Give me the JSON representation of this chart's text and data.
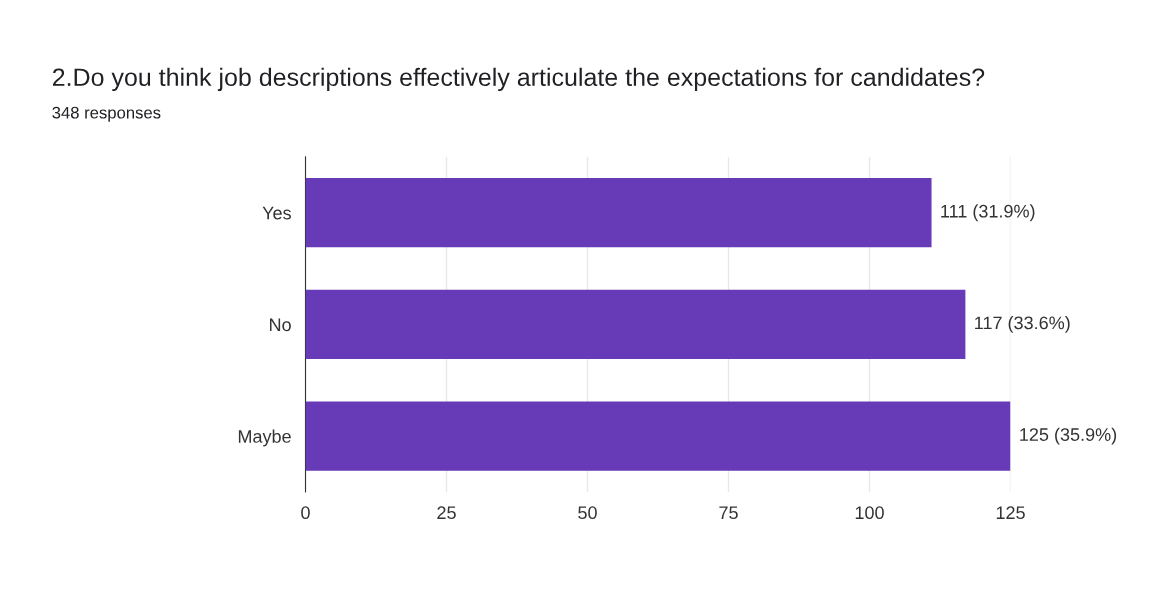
{
  "chart_data": {
    "type": "bar",
    "orientation": "horizontal",
    "title": "2.Do you think job descriptions effectively articulate the expectations for candidates?",
    "subtitle": "348 responses",
    "categories": [
      "Yes",
      "No",
      "Maybe"
    ],
    "values": [
      111,
      117,
      125
    ],
    "value_labels": [
      "111 (31.9%)",
      "117 (33.6%)",
      "125 (35.9%)"
    ],
    "color": "#673ab7",
    "xlim": [
      0,
      125
    ],
    "xticks": [
      0,
      25,
      50,
      75,
      100,
      125
    ],
    "grid": "x",
    "legend": false
  }
}
